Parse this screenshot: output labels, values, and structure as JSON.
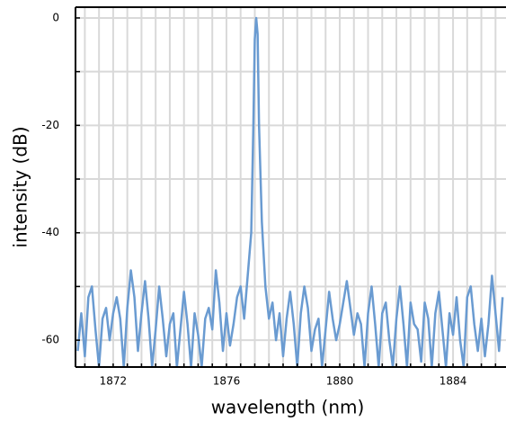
{
  "chart_data": {
    "type": "line",
    "xlabel": "wavelength (nm)",
    "ylabel": "intensity (dB)",
    "xlim": [
      1870.67,
      1885.87
    ],
    "ylim": [
      -65,
      2
    ],
    "xticks": [
      1872,
      1876,
      1880,
      1884
    ],
    "yticks": [
      0,
      -20,
      -40,
      -60
    ],
    "xticks_minor": [
      1871,
      1871.5,
      1872,
      1872.5,
      1873,
      1873.5,
      1874,
      1874.5,
      1875,
      1875.5,
      1876,
      1876.5,
      1877,
      1877.5,
      1878,
      1878.5,
      1879,
      1879.5,
      1880,
      1880.5,
      1881,
      1881.5,
      1882,
      1882.5,
      1883,
      1883.5,
      1884,
      1884.5,
      1885,
      1885.5
    ],
    "yticks_minor": [
      0,
      -10,
      -20,
      -30,
      -40,
      -50,
      -60
    ],
    "grid": true,
    "series": [
      {
        "name": "spectrum",
        "color": "#6a9bd1",
        "x": [
          1870.75,
          1870.875,
          1871,
          1871.125,
          1871.25,
          1871.375,
          1871.5,
          1871.625,
          1871.75,
          1871.875,
          1872,
          1872.125,
          1872.25,
          1872.375,
          1872.5,
          1872.625,
          1872.75,
          1872.875,
          1873,
          1873.125,
          1873.25,
          1873.375,
          1873.5,
          1873.625,
          1873.75,
          1873.875,
          1874,
          1874.125,
          1874.25,
          1874.375,
          1874.5,
          1874.625,
          1874.75,
          1874.875,
          1875,
          1875.125,
          1875.25,
          1875.375,
          1875.5,
          1875.625,
          1875.75,
          1875.875,
          1876,
          1876.125,
          1876.25,
          1876.375,
          1876.5,
          1876.625,
          1876.75,
          1876.875,
          1876.95,
          1877,
          1877.05,
          1877.1,
          1877.15,
          1877.25,
          1877.375,
          1877.5,
          1877.625,
          1877.75,
          1877.875,
          1878,
          1878.125,
          1878.25,
          1878.375,
          1878.5,
          1878.625,
          1878.75,
          1878.875,
          1879,
          1879.125,
          1879.25,
          1879.375,
          1879.5,
          1879.625,
          1879.75,
          1879.875,
          1880,
          1880.125,
          1880.25,
          1880.375,
          1880.5,
          1880.625,
          1880.75,
          1880.875,
          1881,
          1881.125,
          1881.25,
          1881.375,
          1881.5,
          1881.625,
          1881.75,
          1881.875,
          1882,
          1882.125,
          1882.25,
          1882.375,
          1882.5,
          1882.625,
          1882.75,
          1882.875,
          1883,
          1883.125,
          1883.25,
          1883.375,
          1883.5,
          1883.625,
          1883.75,
          1883.875,
          1884,
          1884.125,
          1884.25,
          1884.375,
          1884.5,
          1884.625,
          1884.75,
          1884.875,
          1885,
          1885.125,
          1885.25,
          1885.375,
          1885.5,
          1885.625,
          1885.75
        ],
        "values": [
          -62,
          -55,
          -63,
          -52,
          -50,
          -58,
          -65,
          -56,
          -54,
          -60,
          -55,
          -52,
          -56,
          -65,
          -54,
          -47,
          -52,
          -62,
          -55,
          -49,
          -56,
          -65,
          -58,
          -50,
          -56,
          -63,
          -57,
          -55,
          -65,
          -58,
          -51,
          -57,
          -65,
          -55,
          -59,
          -65,
          -56,
          -54,
          -58,
          -47,
          -53,
          -62,
          -55,
          -61,
          -57,
          -52,
          -50,
          -56,
          -48,
          -40,
          -20,
          -4,
          0,
          -3,
          -20,
          -38,
          -50,
          -56,
          -53,
          -60,
          -55,
          -63,
          -56,
          -51,
          -57,
          -65,
          -55,
          -50,
          -54,
          -62,
          -58,
          -56,
          -65,
          -58,
          -51,
          -56,
          -60,
          -57,
          -53,
          -49,
          -54,
          -59,
          -55,
          -57,
          -65,
          -55,
          -50,
          -57,
          -65,
          -55,
          -53,
          -60,
          -65,
          -56,
          -50,
          -57,
          -65,
          -53,
          -57,
          -58,
          -64,
          -53,
          -56,
          -65,
          -55,
          -51,
          -58,
          -65,
          -55,
          -59,
          -52,
          -60,
          -65,
          -52,
          -50,
          -57,
          -62,
          -56,
          -63,
          -57,
          -48,
          -55,
          -62,
          -52
        ]
      }
    ]
  }
}
